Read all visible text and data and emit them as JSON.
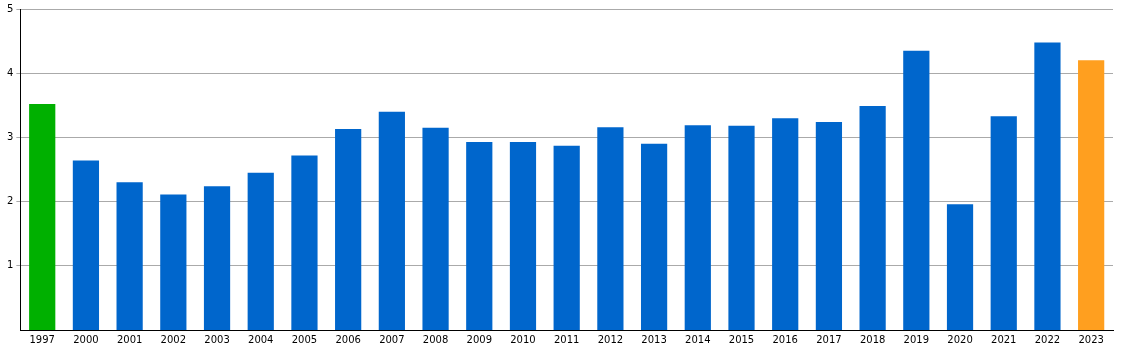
{
  "chart_data": {
    "type": "bar",
    "categories": [
      "1997",
      "2000",
      "2001",
      "2002",
      "2003",
      "2004",
      "2005",
      "2006",
      "2007",
      "2008",
      "2009",
      "2010",
      "2011",
      "2012",
      "2013",
      "2014",
      "2015",
      "2016",
      "2017",
      "2018",
      "2019",
      "2020",
      "2021",
      "2022",
      "2023"
    ],
    "values": [
      3.52,
      2.64,
      2.3,
      2.11,
      2.24,
      2.45,
      2.72,
      3.13,
      3.4,
      3.15,
      2.93,
      2.93,
      2.87,
      3.16,
      2.9,
      3.19,
      3.18,
      3.3,
      3.24,
      3.49,
      4.35,
      1.96,
      3.33,
      4.48,
      4.2
    ],
    "colors": [
      "#00b000",
      "#0066cc",
      "#0066cc",
      "#0066cc",
      "#0066cc",
      "#0066cc",
      "#0066cc",
      "#0066cc",
      "#0066cc",
      "#0066cc",
      "#0066cc",
      "#0066cc",
      "#0066cc",
      "#0066cc",
      "#0066cc",
      "#0066cc",
      "#0066cc",
      "#0066cc",
      "#0066cc",
      "#0066cc",
      "#0066cc",
      "#0066cc",
      "#0066cc",
      "#0066cc",
      "#ff9f1f"
    ],
    "ylim": [
      0,
      5
    ],
    "yticks": [
      1,
      2,
      3,
      4,
      5
    ],
    "grid": "y",
    "legend": false
  }
}
